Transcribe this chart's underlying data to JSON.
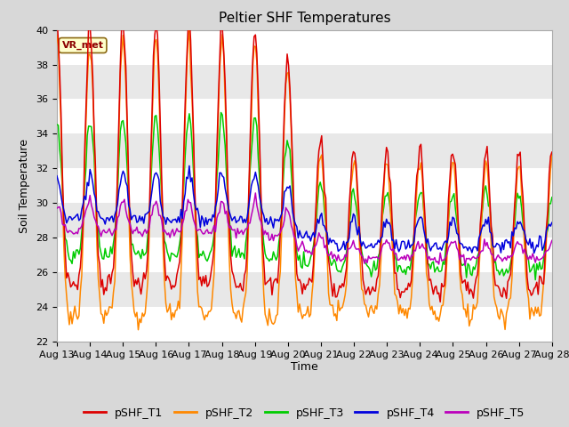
{
  "title": "Peltier SHF Temperatures",
  "xlabel": "Time",
  "ylabel": "Soil Temperature",
  "ylim": [
    22,
    40
  ],
  "date_labels": [
    "Aug 13",
    "Aug 14",
    "Aug 15",
    "Aug 16",
    "Aug 17",
    "Aug 18",
    "Aug 19",
    "Aug 20",
    "Aug 21",
    "Aug 22",
    "Aug 23",
    "Aug 24",
    "Aug 25",
    "Aug 26",
    "Aug 27",
    "Aug 28"
  ],
  "colors": {
    "pSHF_T1": "#dd0000",
    "pSHF_T2": "#ff8800",
    "pSHF_T3": "#00cc00",
    "pSHF_T4": "#0000dd",
    "pSHF_T5": "#bb00bb"
  },
  "legend_labels": [
    "pSHF_T1",
    "pSHF_T2",
    "pSHF_T3",
    "pSHF_T4",
    "pSHF_T5"
  ],
  "annotation_text": "VR_met",
  "background_color": "#d8d8d8",
  "band_colors": [
    "#ffffff",
    "#e8e8e8"
  ],
  "title_fontsize": 11,
  "axis_fontsize": 9,
  "tick_fontsize": 8,
  "legend_fontsize": 9,
  "linewidth": 1.1
}
